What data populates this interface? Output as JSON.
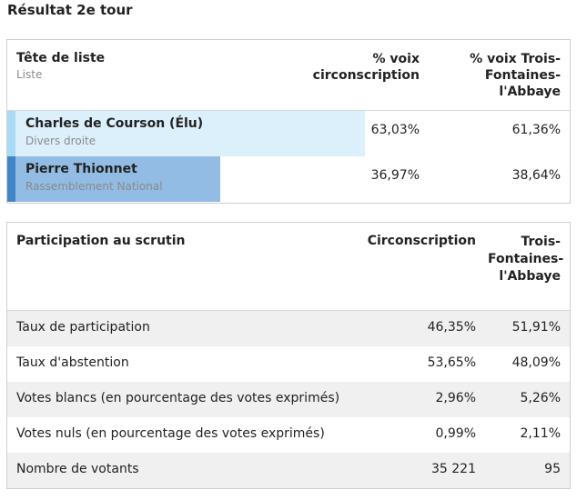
{
  "title": "Résultat 2e tour",
  "results": {
    "header": {
      "head_label": "Tête de liste",
      "sub_label": "Liste",
      "col1": "% voix circonscription",
      "col2": "% voix Trois-Fontaines-l'Abbaye"
    },
    "candidates": [
      {
        "name": "Charles de Courson (Élu)",
        "party": "Divers droite",
        "circ": "63,03%",
        "town": "61,36%",
        "bar_share": 0.6303,
        "color": "#dcf0fc"
      },
      {
        "name": "Pierre Thionnet",
        "party": "Rassemblement National",
        "circ": "36,97%",
        "town": "38,64%",
        "bar_share": 0.3697,
        "color": "#92bce3"
      }
    ]
  },
  "participation": {
    "header": {
      "label": "Participation au scrutin",
      "col1": "Circonscription",
      "col2": "Trois-Fontaines-l'Abbaye"
    },
    "rows": [
      {
        "label": "Taux de participation",
        "circ": "46,35%",
        "town": "51,91%"
      },
      {
        "label": "Taux d'abstention",
        "circ": "53,65%",
        "town": "48,09%"
      },
      {
        "label": "Votes blancs (en pourcentage des votes exprimés)",
        "circ": "2,96%",
        "town": "5,26%"
      },
      {
        "label": "Votes nuls (en pourcentage des votes exprimés)",
        "circ": "0,99%",
        "town": "2,11%"
      },
      {
        "label": "Nombre de votants",
        "circ": "35 221",
        "town": "95"
      }
    ]
  }
}
